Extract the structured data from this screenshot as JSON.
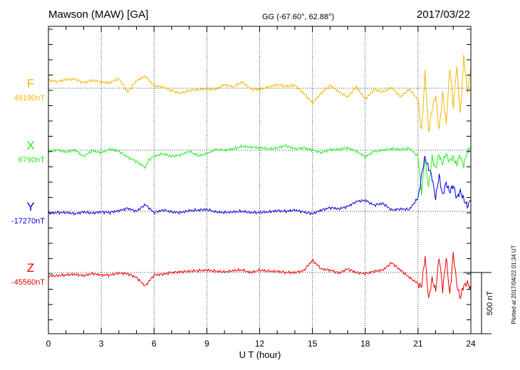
{
  "header": {
    "station": "Mawson (MAW)  [GA]",
    "coords": "GG (-67.60°,  62.88°)",
    "date": "2017/03/22"
  },
  "side_note": "Plotted at 2017/04/22 01:34 UT",
  "chart_data": {
    "type": "line",
    "xlabel": "U T (hour)",
    "xlim": [
      0,
      24
    ],
    "xticks": [
      "0",
      "3",
      "6",
      "9",
      "12",
      "15",
      "18",
      "21",
      "24"
    ],
    "scale_bar": {
      "label": "500 nT",
      "value_nT": 500
    },
    "series": [
      {
        "name": "F",
        "baseline_label": "49190nT",
        "baseline_nT": 49190,
        "color": "#f5b800",
        "points": [
          [
            0,
            65
          ],
          [
            0.5,
            55
          ],
          [
            1,
            70
          ],
          [
            1.5,
            75
          ],
          [
            2,
            45
          ],
          [
            2.5,
            65
          ],
          [
            3,
            50
          ],
          [
            3.5,
            45
          ],
          [
            4,
            80
          ],
          [
            4.5,
            -30
          ],
          [
            5,
            60
          ],
          [
            5.5,
            100
          ],
          [
            6,
            20
          ],
          [
            6.5,
            10
          ],
          [
            7,
            -20
          ],
          [
            7.5,
            -40
          ],
          [
            8,
            -20
          ],
          [
            8.5,
            -10
          ],
          [
            9,
            -5
          ],
          [
            9.5,
            -10
          ],
          [
            10,
            30
          ],
          [
            10.5,
            10
          ],
          [
            11,
            50
          ],
          [
            11.5,
            -5
          ],
          [
            12,
            -10
          ],
          [
            12.5,
            10
          ],
          [
            13,
            30
          ],
          [
            13.5,
            15
          ],
          [
            14,
            25
          ],
          [
            14.5,
            -40
          ],
          [
            15,
            -120
          ],
          [
            15.5,
            -40
          ],
          [
            16,
            25
          ],
          [
            16.5,
            -30
          ],
          [
            17,
            -70
          ],
          [
            17.5,
            10
          ],
          [
            18,
            -90
          ],
          [
            18.5,
            -10
          ],
          [
            19,
            -30
          ],
          [
            19.5,
            5
          ],
          [
            20,
            -70
          ],
          [
            20.5,
            -10
          ],
          [
            21,
            -90
          ],
          [
            21.2,
            -350
          ],
          [
            21.4,
            120
          ],
          [
            21.6,
            -350
          ],
          [
            21.8,
            -180
          ],
          [
            22,
            -50
          ],
          [
            22.2,
            -350
          ],
          [
            22.4,
            -30
          ],
          [
            22.6,
            -300
          ],
          [
            22.8,
            180
          ],
          [
            23,
            -150
          ],
          [
            23.2,
            190
          ],
          [
            23.4,
            -220
          ],
          [
            23.6,
            260
          ],
          [
            23.8,
            -40
          ],
          [
            24,
            180
          ]
        ]
      },
      {
        "name": "X",
        "baseline_label": "6790nT",
        "baseline_nT": 6790,
        "color": "#22ee22",
        "points": [
          [
            0,
            -5
          ],
          [
            0.5,
            0
          ],
          [
            1,
            -15
          ],
          [
            1.5,
            0
          ],
          [
            2,
            -50
          ],
          [
            2.5,
            -5
          ],
          [
            3,
            -20
          ],
          [
            3.5,
            10
          ],
          [
            4,
            -10
          ],
          [
            4.5,
            -55
          ],
          [
            5,
            -95
          ],
          [
            5.5,
            -140
          ],
          [
            5.7,
            -80
          ],
          [
            6,
            -50
          ],
          [
            6.5,
            -30
          ],
          [
            7,
            -50
          ],
          [
            7.5,
            -40
          ],
          [
            8,
            -10
          ],
          [
            8.5,
            -45
          ],
          [
            9,
            -30
          ],
          [
            9.5,
            5
          ],
          [
            10,
            0
          ],
          [
            10.5,
            10
          ],
          [
            11,
            30
          ],
          [
            11.5,
            25
          ],
          [
            12,
            20
          ],
          [
            12.5,
            10
          ],
          [
            13,
            20
          ],
          [
            13.5,
            35
          ],
          [
            14,
            10
          ],
          [
            14.5,
            20
          ],
          [
            15,
            0
          ],
          [
            15.5,
            -20
          ],
          [
            16,
            5
          ],
          [
            16.5,
            5
          ],
          [
            17,
            20
          ],
          [
            17.5,
            -10
          ],
          [
            18,
            -55
          ],
          [
            18.5,
            -10
          ],
          [
            19,
            0
          ],
          [
            19.5,
            10
          ],
          [
            20,
            5
          ],
          [
            20.5,
            15
          ],
          [
            21,
            -50
          ],
          [
            21.2,
            -340
          ],
          [
            21.4,
            -60
          ],
          [
            21.6,
            -300
          ],
          [
            21.8,
            -60
          ],
          [
            22,
            -150
          ],
          [
            22.2,
            -40
          ],
          [
            22.4,
            -110
          ],
          [
            22.6,
            -30
          ],
          [
            22.8,
            -90
          ],
          [
            23,
            -60
          ],
          [
            23.2,
            -120
          ],
          [
            23.4,
            -40
          ],
          [
            23.6,
            -130
          ],
          [
            23.8,
            -10
          ],
          [
            24,
            30
          ]
        ]
      },
      {
        "name": "Y",
        "baseline_label": "-17270nT",
        "baseline_nT": -17270,
        "color": "#0000dd",
        "points": [
          [
            0,
            -15
          ],
          [
            0.5,
            -10
          ],
          [
            1,
            -10
          ],
          [
            1.5,
            -20
          ],
          [
            2,
            -5
          ],
          [
            2.5,
            -15
          ],
          [
            3,
            -5
          ],
          [
            3.5,
            -10
          ],
          [
            4,
            5
          ],
          [
            4.5,
            25
          ],
          [
            5,
            0
          ],
          [
            5.5,
            55
          ],
          [
            6,
            -10
          ],
          [
            6.5,
            10
          ],
          [
            7,
            -5
          ],
          [
            7.5,
            -10
          ],
          [
            8,
            5
          ],
          [
            8.5,
            10
          ],
          [
            9,
            15
          ],
          [
            9.5,
            -5
          ],
          [
            10,
            -10
          ],
          [
            10.5,
            -5
          ],
          [
            11,
            0
          ],
          [
            11.5,
            -10
          ],
          [
            12,
            -10
          ],
          [
            12.5,
            -5
          ],
          [
            13,
            5
          ],
          [
            13.5,
            0
          ],
          [
            14,
            10
          ],
          [
            14.5,
            -5
          ],
          [
            15,
            -20
          ],
          [
            15.5,
            10
          ],
          [
            16,
            30
          ],
          [
            16.5,
            20
          ],
          [
            17,
            40
          ],
          [
            17.5,
            80
          ],
          [
            18,
            90
          ],
          [
            18.5,
            50
          ],
          [
            19,
            65
          ],
          [
            19.5,
            10
          ],
          [
            20,
            20
          ],
          [
            20.5,
            15
          ],
          [
            21,
            110
          ],
          [
            21.2,
            290
          ],
          [
            21.4,
            450
          ],
          [
            21.6,
            350
          ],
          [
            21.8,
            280
          ],
          [
            22,
            100
          ],
          [
            22.2,
            300
          ],
          [
            22.4,
            120
          ],
          [
            22.6,
            240
          ],
          [
            22.8,
            150
          ],
          [
            23,
            220
          ],
          [
            23.2,
            100
          ],
          [
            23.4,
            170
          ],
          [
            23.6,
            90
          ],
          [
            23.8,
            50
          ],
          [
            24,
            80
          ]
        ]
      },
      {
        "name": "Z",
        "baseline_label": "-45560nT",
        "baseline_nT": -45560,
        "color": "#ee0000",
        "points": [
          [
            0,
            -30
          ],
          [
            0.5,
            -25
          ],
          [
            1,
            -20
          ],
          [
            1.5,
            -15
          ],
          [
            2,
            -25
          ],
          [
            2.5,
            -10
          ],
          [
            3,
            -20
          ],
          [
            3.5,
            -20
          ],
          [
            4,
            -5
          ],
          [
            4.5,
            -10
          ],
          [
            5,
            -40
          ],
          [
            5.5,
            -110
          ],
          [
            6,
            -20
          ],
          [
            6.5,
            -15
          ],
          [
            7,
            0
          ],
          [
            7.5,
            5
          ],
          [
            8,
            10
          ],
          [
            8.5,
            15
          ],
          [
            9,
            20
          ],
          [
            9.5,
            10
          ],
          [
            10,
            5
          ],
          [
            10.5,
            15
          ],
          [
            11,
            20
          ],
          [
            11.5,
            0
          ],
          [
            12,
            20
          ],
          [
            12.5,
            10
          ],
          [
            13,
            10
          ],
          [
            13.5,
            0
          ],
          [
            14,
            0
          ],
          [
            14.5,
            15
          ],
          [
            15,
            100
          ],
          [
            15.5,
            30
          ],
          [
            16,
            20
          ],
          [
            16.5,
            -5
          ],
          [
            17,
            30
          ],
          [
            17.5,
            0
          ],
          [
            18,
            -10
          ],
          [
            18.5,
            10
          ],
          [
            19,
            20
          ],
          [
            19.5,
            80
          ],
          [
            20,
            20
          ],
          [
            20.5,
            -40
          ],
          [
            21,
            -90
          ],
          [
            21.2,
            -120
          ],
          [
            21.4,
            140
          ],
          [
            21.6,
            -230
          ],
          [
            21.8,
            -40
          ],
          [
            22,
            -160
          ],
          [
            22.2,
            140
          ],
          [
            22.4,
            -150
          ],
          [
            22.6,
            130
          ],
          [
            22.8,
            -190
          ],
          [
            23,
            160
          ],
          [
            23.2,
            -100
          ],
          [
            23.4,
            -200
          ],
          [
            23.6,
            -110
          ],
          [
            23.8,
            -80
          ],
          [
            24,
            -140
          ]
        ]
      }
    ]
  }
}
